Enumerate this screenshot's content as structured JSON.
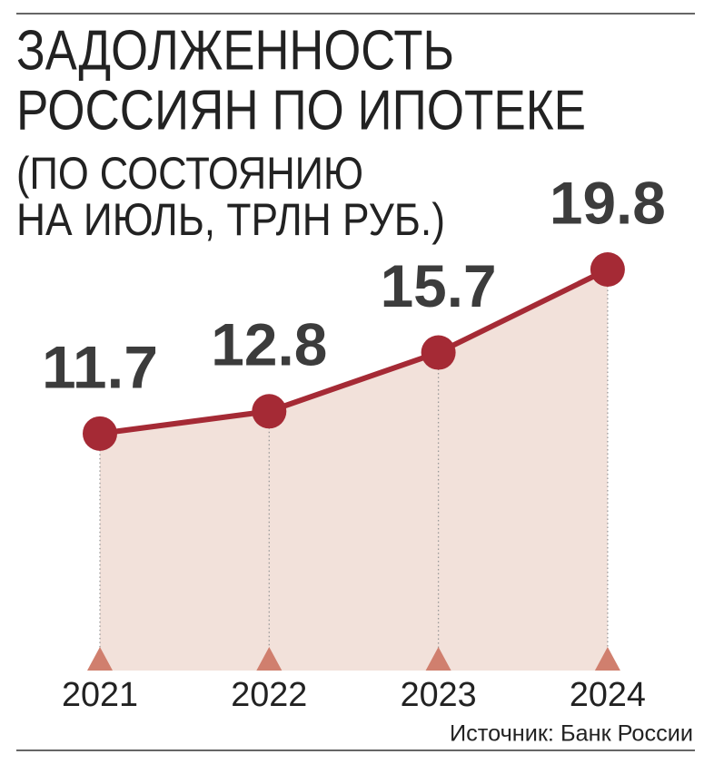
{
  "chart_data": {
    "type": "line",
    "title": [
      "ЗАДОЛЖЕННОСТЬ",
      "РОССИЯН ПО ИПОТЕКЕ"
    ],
    "subtitle": [
      "(ПО СОСТОЯНИЮ",
      "НА ИЮЛЬ, ТРЛН РУБ.)"
    ],
    "categories": [
      "2021",
      "2022",
      "2023",
      "2024"
    ],
    "values": [
      11.7,
      12.8,
      15.7,
      19.8
    ],
    "color": "#a52a35",
    "area_color": "#f2e1da",
    "source": "Источник: Банк России"
  }
}
